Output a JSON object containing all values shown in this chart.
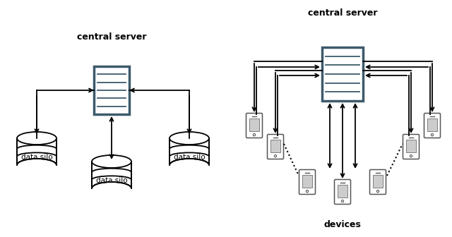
{
  "bg_color": "#ffffff",
  "text_color": "#000000",
  "server_border": "#3d5a6b",
  "left_title": "central server",
  "right_title": "central server",
  "bottom_label": "devices",
  "title_fontsize": 9,
  "label_fontsize": 7.5
}
